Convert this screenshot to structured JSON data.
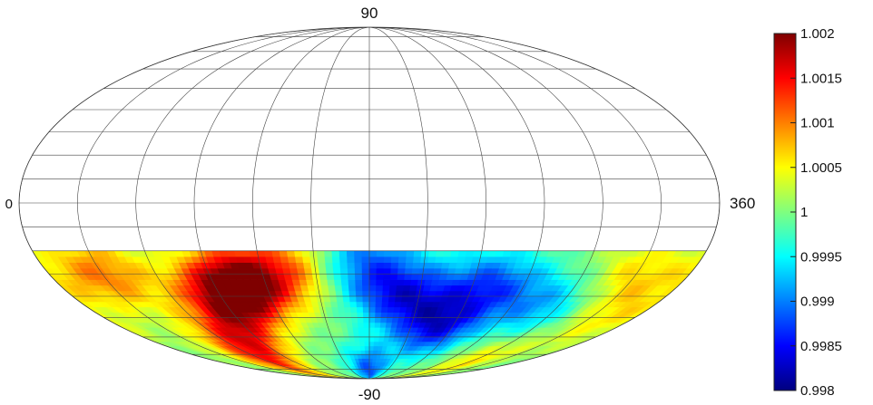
{
  "chart_data": {
    "type": "heatmap",
    "projection": "mollweide",
    "grid": true,
    "title": "",
    "xlabel": "",
    "ylabel": "",
    "x_range": [
      0,
      360
    ],
    "y_range": [
      -90,
      90
    ],
    "edge_labels": {
      "top": "90",
      "bottom": "-90",
      "left": "0",
      "right": "360"
    },
    "data_coverage_lat": [
      -90,
      -20
    ],
    "colorbar": {
      "range": [
        0.998,
        1.002
      ],
      "ticks": [
        "1.002",
        "1.0015",
        "1.001",
        "1.0005",
        "1",
        "0.9995",
        "0.999",
        "0.9985",
        "0.998"
      ],
      "colormap": "jet",
      "colors": [
        "#00007f",
        "#0000ff",
        "#007fff",
        "#00ffff",
        "#7fff7f",
        "#ffff00",
        "#ff7f00",
        "#ff0000",
        "#7f0000"
      ]
    },
    "hotspots": [
      {
        "lon": 95,
        "lat": -40,
        "value": 1.0016
      },
      {
        "lon": 110,
        "lat": -32,
        "value": 1.0013
      },
      {
        "lon": 80,
        "lat": -60,
        "value": 1.0012
      },
      {
        "lon": 30,
        "lat": -30,
        "value": 1.001
      },
      {
        "lon": 140,
        "lat": -28,
        "value": 1.0008
      },
      {
        "lon": 60,
        "lat": -75,
        "value": 1.001
      },
      {
        "lon": 200,
        "lat": -40,
        "value": 0.9987
      },
      {
        "lon": 230,
        "lat": -55,
        "value": 0.9986
      },
      {
        "lon": 250,
        "lat": -35,
        "value": 0.9989
      },
      {
        "lon": 175,
        "lat": -25,
        "value": 0.999
      },
      {
        "lon": 290,
        "lat": -45,
        "value": 0.9992
      },
      {
        "lon": 330,
        "lat": -30,
        "value": 1.0006
      },
      {
        "lon": 345,
        "lat": -50,
        "value": 1.0005
      },
      {
        "lon": 300,
        "lat": -75,
        "value": 1.0006
      },
      {
        "lon": 180,
        "lat": -80,
        "value": 0.9988
      }
    ]
  }
}
